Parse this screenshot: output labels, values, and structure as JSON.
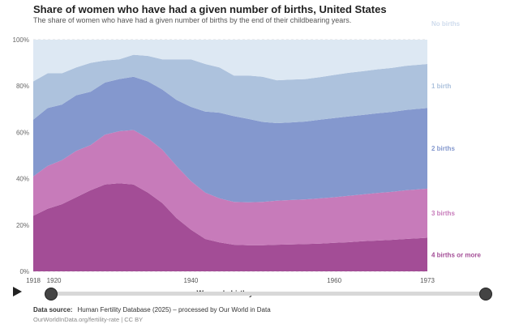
{
  "header": {
    "title": "Share of women who have had a given number of births, United States",
    "subtitle": "The share of women who have had a given number of births by the end of their childbearing years."
  },
  "footer": {
    "source_label": "Data source:",
    "source_text": "Human Fertility Database (2025) – processed by Our World in Data",
    "url_text": "OurWorldInData.org/fertility-rate | CC BY"
  },
  "timeline": {
    "start_year": "1918",
    "end_year": "1973"
  },
  "chart_data": {
    "type": "area",
    "stacked": true,
    "xlabel": "Women's birth year",
    "ylabel": "",
    "xlim": [
      1918,
      1973
    ],
    "ylim": [
      0,
      100
    ],
    "y_tick_labels": [
      "0%",
      "20%",
      "40%",
      "60%",
      "80%",
      "100%"
    ],
    "y_tick_values": [
      0,
      20,
      40,
      60,
      80,
      100
    ],
    "x_tick_labels": [
      "1918",
      "1920",
      "1940",
      "1960",
      "1973"
    ],
    "x_tick_values": [
      1918,
      1920,
      1940,
      1960,
      1973
    ],
    "grid": true,
    "legend_placement": "right (inline labels)",
    "x": [
      1918,
      1920,
      1922,
      1924,
      1926,
      1928,
      1930,
      1932,
      1934,
      1936,
      1938,
      1940,
      1942,
      1944,
      1946,
      1948,
      1950,
      1952,
      1954,
      1956,
      1958,
      1960,
      1962,
      1964,
      1966,
      1968,
      1970,
      1973
    ],
    "series": [
      {
        "name": "4 births or more",
        "color": "#a34d96",
        "values": [
          24,
          27,
          29,
          32,
          35,
          37.5,
          38,
          37.5,
          34,
          29.5,
          23,
          18,
          14,
          12.5,
          11.5,
          11.3,
          11.3,
          11.5,
          11.6,
          11.8,
          12,
          12.3,
          12.6,
          13,
          13.3,
          13.6,
          14,
          14.5
        ]
      },
      {
        "name": "3 births",
        "color": "#c77bba",
        "values": [
          17,
          18.5,
          19,
          20,
          19.5,
          21.5,
          22.5,
          23.5,
          23.5,
          23,
          22.5,
          21,
          20,
          19,
          18.5,
          18.5,
          18.7,
          19,
          19.2,
          19.3,
          19.5,
          19.7,
          20,
          20.2,
          20.5,
          20.7,
          21,
          21.2
        ]
      },
      {
        "name": "2 births",
        "color": "#8498ce",
        "values": [
          24.5,
          25,
          24,
          24,
          23,
          22.5,
          22.5,
          23,
          24.5,
          26,
          28.5,
          32,
          35,
          37,
          37,
          36,
          34.5,
          33.5,
          33.5,
          33.6,
          34,
          34.2,
          34.3,
          34.3,
          34.4,
          34.5,
          34.7,
          34.8
        ]
      },
      {
        "name": "1 birth",
        "color": "#adc2dd",
        "values": [
          16.5,
          15,
          13.5,
          12,
          12.5,
          9.5,
          8.5,
          9.5,
          11,
          13,
          17.5,
          20.5,
          20.5,
          19.5,
          17.5,
          18.7,
          19.5,
          18.5,
          18.5,
          18.3,
          18.3,
          18.6,
          18.8,
          18.9,
          19,
          19,
          19,
          19
        ]
      },
      {
        "name": "No births",
        "color": "#dde8f3",
        "values": [
          18,
          14.5,
          14.5,
          12,
          10,
          9,
          8.5,
          6.5,
          7,
          8.5,
          8.5,
          8.5,
          10.5,
          12,
          15.5,
          15.5,
          16,
          17.5,
          17.2,
          17,
          16.2,
          15.2,
          14.3,
          13.6,
          12.8,
          12.2,
          11.3,
          10.5
        ]
      }
    ]
  }
}
